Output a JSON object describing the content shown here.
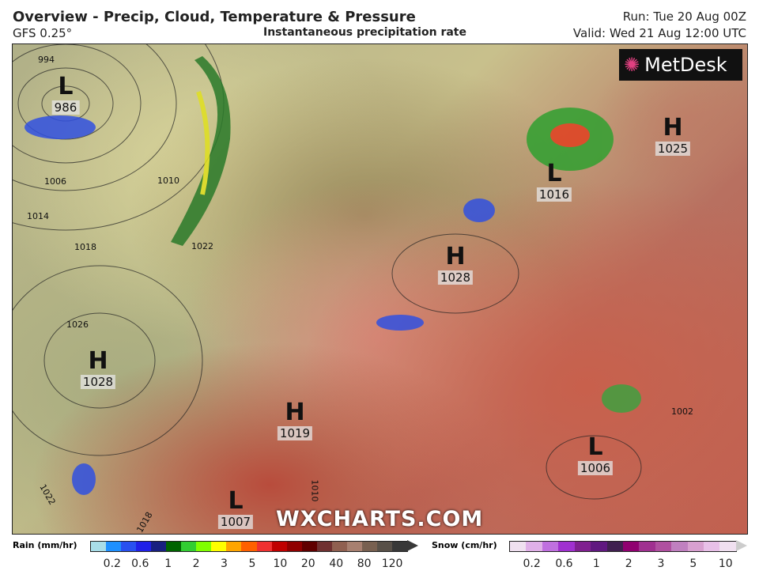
{
  "header": {
    "title": "Overview - Precip, Cloud, Temperature & Pressure",
    "model": "GFS 0.25°",
    "subtitle": "Instantaneous precipitation rate",
    "run": "Run: Tue 20 Aug 00Z",
    "valid": "Valid: Wed 21 Aug 12:00 UTC"
  },
  "logo": "MetDesk",
  "watermark": "WXCHARTS.COM",
  "pressure_centers": [
    {
      "type": "L",
      "value": "986"
    },
    {
      "type": "L",
      "value": "1016"
    },
    {
      "type": "H",
      "value": "1025"
    },
    {
      "type": "H",
      "value": "1028"
    },
    {
      "type": "H",
      "value": "1028"
    },
    {
      "type": "H",
      "value": "1019"
    },
    {
      "type": "L",
      "value": "1006"
    },
    {
      "type": "L",
      "value": "1007"
    }
  ],
  "isobar_labels": [
    "994",
    "1006",
    "1010",
    "1014",
    "1018",
    "1022",
    "1026",
    "1002",
    "1022",
    "1018",
    "1010"
  ],
  "legend": {
    "rain": {
      "label": "Rain (mm/hr)",
      "ticks": [
        "0.2",
        "0.6",
        "1",
        "2",
        "3",
        "5",
        "10",
        "20",
        "40",
        "80",
        "120"
      ],
      "colors": [
        "#a8dde8",
        "#1e90ff",
        "#2850f0",
        "#2020e8",
        "#182080",
        "#006400",
        "#32cd32",
        "#80ff00",
        "#ffff00",
        "#ffa500",
        "#ff6000",
        "#f03030",
        "#c00000",
        "#900000",
        "#600000",
        "#703030",
        "#906050",
        "#a88070",
        "#786050",
        "#585048",
        "#383838"
      ]
    },
    "snow": {
      "label": "Snow (cm/hr)",
      "ticks": [
        "0.2",
        "0.6",
        "1",
        "2",
        "3",
        "5",
        "10"
      ],
      "colors": [
        "#f0e0f0",
        "#e0b0e8",
        "#c070e0",
        "#a030d0",
        "#802090",
        "#601880",
        "#402050",
        "#900070",
        "#a03090",
        "#b050a0",
        "#c080c0",
        "#d8a0d0",
        "#e8c0e8",
        "#f0e0f0"
      ]
    }
  }
}
